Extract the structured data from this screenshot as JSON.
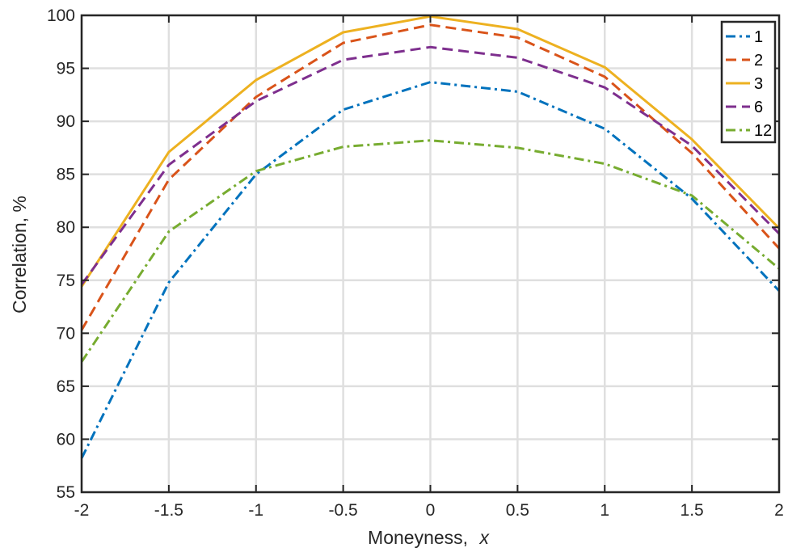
{
  "chart_data": {
    "type": "line",
    "title": "",
    "xlabel": "Moneyness,",
    "xlabel_var": "x",
    "ylabel": "Correlation, %",
    "xlim": [
      -2,
      2
    ],
    "ylim": [
      55,
      100
    ],
    "x": [
      -2,
      -1.5,
      -1,
      -0.5,
      0,
      0.5,
      1,
      1.5,
      2
    ],
    "x_tick_labels": [
      "-2",
      "-1.5",
      "-1",
      "-0.5",
      "0",
      "0.5",
      "1",
      "1.5",
      "2"
    ],
    "y_ticks": [
      55,
      60,
      65,
      70,
      75,
      80,
      85,
      90,
      95,
      100
    ],
    "y_tick_labels": [
      "55",
      "60",
      "65",
      "70",
      "75",
      "80",
      "85",
      "90",
      "95",
      "100"
    ],
    "grid": true,
    "legend_position": "top-right",
    "series": [
      {
        "name": "1",
        "color": "#0072BD",
        "style": "dashdot",
        "values": [
          58.2,
          74.8,
          85.0,
          91.1,
          93.7,
          92.8,
          89.3,
          82.7,
          74.0
        ]
      },
      {
        "name": "2",
        "color": "#D95319",
        "style": "dashed",
        "values": [
          70.3,
          84.5,
          92.3,
          97.4,
          99.1,
          97.9,
          94.2,
          87.0,
          78.0
        ]
      },
      {
        "name": "3",
        "color": "#EDB120",
        "style": "solid",
        "values": [
          74.4,
          87.1,
          93.9,
          98.4,
          99.9,
          98.7,
          95.1,
          88.3,
          79.9
        ]
      },
      {
        "name": "6",
        "color": "#7E2F8E",
        "style": "dashed",
        "values": [
          74.6,
          85.9,
          91.9,
          95.8,
          97.0,
          96.0,
          93.2,
          87.7,
          79.4
        ]
      },
      {
        "name": "12",
        "color": "#77AC30",
        "style": "dashdot",
        "values": [
          67.3,
          79.6,
          85.3,
          87.6,
          88.2,
          87.5,
          86.0,
          83.0,
          76.1
        ]
      }
    ]
  }
}
